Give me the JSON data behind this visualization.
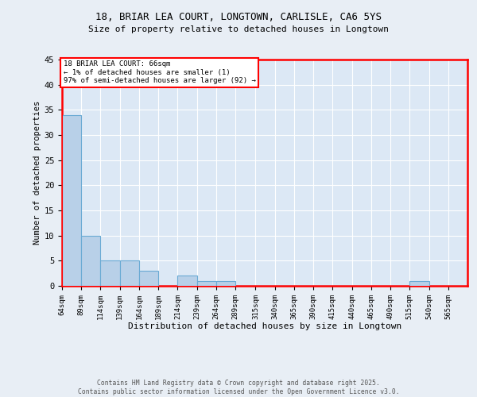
{
  "title1": "18, BRIAR LEA COURT, LONGTOWN, CARLISLE, CA6 5YS",
  "title2": "Size of property relative to detached houses in Longtown",
  "xlabel": "Distribution of detached houses by size in Longtown",
  "ylabel": "Number of detached properties",
  "footer1": "Contains HM Land Registry data © Crown copyright and database right 2025.",
  "footer2": "Contains public sector information licensed under the Open Government Licence v3.0.",
  "annotation_line1": "18 BRIAR LEA COURT: 66sqm",
  "annotation_line2": "← 1% of detached houses are smaller (1)",
  "annotation_line3": "97% of semi-detached houses are larger (92) →",
  "bin_labels": [
    "64sqm",
    "89sqm",
    "114sqm",
    "139sqm",
    "164sqm",
    "189sqm",
    "214sqm",
    "239sqm",
    "264sqm",
    "289sqm",
    "315sqm",
    "340sqm",
    "365sqm",
    "390sqm",
    "415sqm",
    "440sqm",
    "465sqm",
    "490sqm",
    "515sqm",
    "540sqm",
    "565sqm"
  ],
  "bin_edges": [
    64,
    89,
    114,
    139,
    164,
    189,
    214,
    239,
    264,
    289,
    315,
    340,
    365,
    390,
    415,
    440,
    465,
    490,
    515,
    540,
    565,
    590
  ],
  "counts": [
    34,
    10,
    5,
    5,
    3,
    0,
    2,
    1,
    1,
    0,
    0,
    0,
    0,
    0,
    0,
    0,
    0,
    0,
    1,
    0,
    0
  ],
  "bar_color": "#b8d0e8",
  "bar_edge_color": "#6aaad4",
  "background_color": "#e8eef5",
  "plot_bg_color": "#dce8f5",
  "ylim": [
    0,
    45
  ],
  "yticks": [
    0,
    5,
    10,
    15,
    20,
    25,
    30,
    35,
    40,
    45
  ]
}
